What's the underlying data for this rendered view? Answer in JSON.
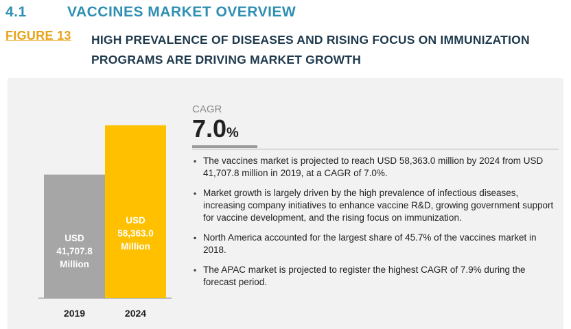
{
  "section": {
    "number": "4.1",
    "title": "VACCINES MARKET OVERVIEW"
  },
  "figure": {
    "label": "FIGURE 13",
    "title": "HIGH PREVALENCE OF DISEASES AND RISING FOCUS ON IMMUNIZATION PROGRAMS ARE DRIVING MARKET GROWTH"
  },
  "cagr": {
    "label": "CAGR",
    "value": "7.0",
    "unit": "%"
  },
  "bullets": [
    "The vaccines market is projected to reach USD 58,363.0 million by 2024 from USD 41,707.8 million in 2019, at a CAGR of 7.0%.",
    "Market growth is largely driven by the high prevalence of infectious diseases, increasing company initiatives to enhance vaccine R&D, growing government support for vaccine development, and the rising focus on immunization.",
    "North America accounted for the largest share of 45.7% of the vaccines market in 2018.",
    "The APAC market is projected to register the highest CAGR of 7.9% during the forecast period."
  ],
  "colors": {
    "bar_2019": "#a6a6a6",
    "bar_2024": "#ffc000",
    "accent": "#2f8fb3",
    "figure_label": "#e8a317"
  },
  "chart_data": {
    "type": "bar",
    "categories": [
      "2019",
      "2024"
    ],
    "values": [
      41707.8,
      58363.0
    ],
    "bar_labels": [
      [
        "USD",
        "41,707.8",
        "Million"
      ],
      [
        "USD",
        "58,363.0",
        "Million"
      ]
    ],
    "title": "",
    "xlabel": "",
    "ylabel": "",
    "ylim": [
      0,
      65000
    ]
  }
}
